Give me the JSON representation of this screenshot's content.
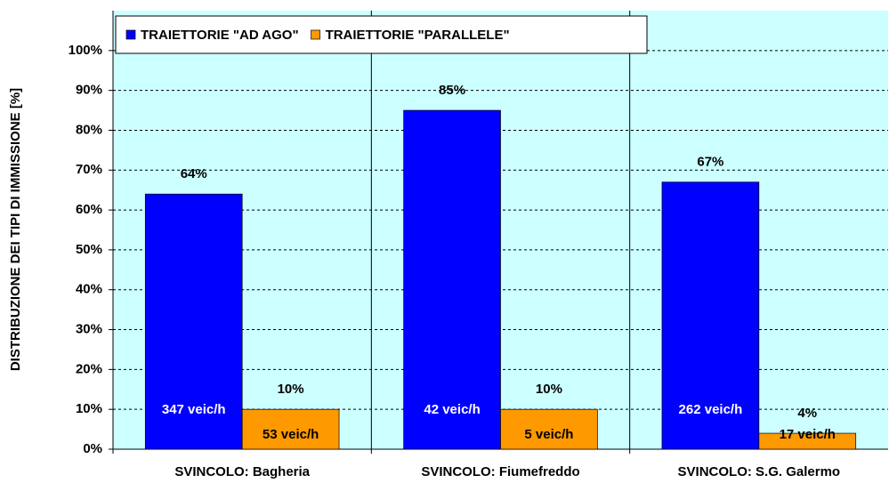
{
  "chart_data": {
    "type": "bar",
    "y_label": "DISTRIBUZIONE DEI TIPI DI IMMISSIONE [%]",
    "categories": [
      "SVINCOLO: Bagheria",
      "SVINCOLO: Fiumefreddo",
      "SVINCOLO: S.G. Galermo"
    ],
    "series": [
      {
        "name": "TRAIETTORIE \"AD AGO\"",
        "color": "#0000ff",
        "values": [
          64,
          85,
          67
        ],
        "value_labels": [
          "64%",
          "85%",
          "67%"
        ],
        "flow_labels": [
          "347 veic/h",
          "42 veic/h",
          "262 veic/h"
        ]
      },
      {
        "name": "TRAIETTORIE \"PARALLELE\"",
        "color": "#ff9900",
        "values": [
          10,
          10,
          4
        ],
        "value_labels": [
          "10%",
          "10%",
          "4%"
        ],
        "flow_labels": [
          "53 veic/h",
          "5 veic/h",
          "17 veic/h"
        ]
      }
    ],
    "ylim": [
      0,
      110
    ],
    "yticks": [
      {
        "value": 0,
        "label": "0%"
      },
      {
        "value": 10,
        "label": "10%"
      },
      {
        "value": 20,
        "label": "20%"
      },
      {
        "value": 30,
        "label": "30%"
      },
      {
        "value": 40,
        "label": "40%"
      },
      {
        "value": 50,
        "label": "50%"
      },
      {
        "value": 60,
        "label": "60%"
      },
      {
        "value": 70,
        "label": "70%"
      },
      {
        "value": 80,
        "label": "80%"
      },
      {
        "value": 90,
        "label": "90%"
      },
      {
        "value": 100,
        "label": "100%"
      }
    ],
    "grid": true,
    "plot_background": "#ccffff"
  }
}
